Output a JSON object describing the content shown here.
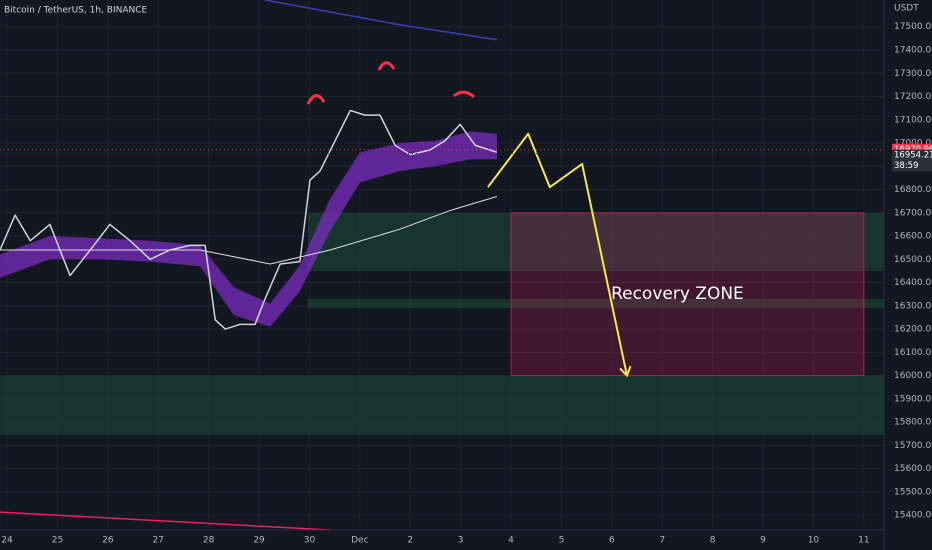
{
  "chart_data": {
    "type": "line",
    "title": "Bitcoin / TetherUS, 1h, BINANCE",
    "currency": "USDT",
    "xlim": [
      -0.14,
      17.4
    ],
    "ylim": [
      15250,
      17615
    ],
    "grid": true,
    "xticks": [
      {
        "value": 0,
        "label": "24"
      },
      {
        "value": 1,
        "label": "25"
      },
      {
        "value": 2,
        "label": "26"
      },
      {
        "value": 3,
        "label": "27"
      },
      {
        "value": 4,
        "label": "28"
      },
      {
        "value": 5,
        "label": "29"
      },
      {
        "value": 6,
        "label": "30"
      },
      {
        "value": 7,
        "label": "Dec"
      },
      {
        "value": 8,
        "label": "2"
      },
      {
        "value": 9,
        "label": "3"
      },
      {
        "value": 10,
        "label": "4"
      },
      {
        "value": 11,
        "label": "5"
      },
      {
        "value": 12,
        "label": "6"
      },
      {
        "value": 13,
        "label": "7"
      },
      {
        "value": 14,
        "label": "8"
      },
      {
        "value": 15,
        "label": "9"
      },
      {
        "value": 16,
        "label": "10"
      },
      {
        "value": 17,
        "label": "11"
      }
    ],
    "yticks": [
      {
        "value": 15400,
        "label": "15400.00"
      },
      {
        "value": 15500,
        "label": "15500.00"
      },
      {
        "value": 15600,
        "label": "15600.00"
      },
      {
        "value": 15700,
        "label": "15700.00"
      },
      {
        "value": 15800,
        "label": "15800.00"
      },
      {
        "value": 15900,
        "label": "15900.00"
      },
      {
        "value": 16000,
        "label": "16000.00"
      },
      {
        "value": 16100,
        "label": "16100.00"
      },
      {
        "value": 16200,
        "label": "16200.00"
      },
      {
        "value": 16300,
        "label": "16300.00"
      },
      {
        "value": 16400,
        "label": "16400.00"
      },
      {
        "value": 16500,
        "label": "16500.00"
      },
      {
        "value": 16600,
        "label": "16600.00"
      },
      {
        "value": 16700,
        "label": "16700.00"
      },
      {
        "value": 16800,
        "label": "16800.00"
      },
      {
        "value": 16900,
        "label": "16900.00"
      },
      {
        "value": 17000,
        "label": "17000.00"
      },
      {
        "value": 17100,
        "label": "17100.00"
      },
      {
        "value": 17200,
        "label": "17200.00"
      },
      {
        "value": 17300,
        "label": "17300.00"
      },
      {
        "value": 17400,
        "label": "17400.00"
      },
      {
        "value": 17500,
        "label": "17500.00"
      }
    ],
    "zones": [
      {
        "x": [
          5.97,
          17.4
        ],
        "y": [
          16450,
          16700
        ],
        "color": "#1e4d3a"
      },
      {
        "x": [
          5.97,
          17.4
        ],
        "y": [
          16290,
          16330
        ],
        "color": "#1e4d3a"
      },
      {
        "x": [
          -0.14,
          17.4
        ],
        "y": [
          15830,
          16000
        ],
        "color": "#1e4d3a"
      },
      {
        "x": [
          -0.14,
          17.4
        ],
        "y": [
          15745,
          15830
        ],
        "color": "#1e4d3a"
      },
      {
        "x": [
          10,
          17
        ],
        "y": [
          16000,
          16700
        ],
        "color": "#e91e63",
        "label": "Recovery ZONE"
      }
    ],
    "bands": [
      {
        "color": "#7b2cbf",
        "x": [
          -0.14,
          0.85,
          1.85,
          2.84,
          3.83,
          4.5,
          5.22,
          5.8,
          6.41,
          7.0,
          7.8,
          8.5,
          9.2,
          9.72
        ],
        "upper": [
          16520,
          16600,
          16590,
          16580,
          16560,
          16380,
          16310,
          16470,
          16760,
          16960,
          17000,
          17010,
          17050,
          17040
        ],
        "lower": [
          16420,
          16500,
          16500,
          16490,
          16470,
          16260,
          16210,
          16360,
          16620,
          16830,
          16880,
          16900,
          16930,
          16930
        ]
      }
    ],
    "series": [
      {
        "color": "#d1d4dc",
        "width": 1.5,
        "x": [
          -0.14,
          0.16,
          0.46,
          0.85,
          1.25,
          1.65,
          2.04,
          2.44,
          2.84,
          3.23,
          3.63,
          3.93,
          4.13,
          4.33,
          4.62,
          4.92,
          5.12,
          5.42,
          5.81,
          6.01,
          6.21,
          6.51,
          6.81,
          7.1,
          7.4,
          7.7,
          8.0,
          8.39,
          8.69,
          8.99,
          9.29,
          9.58,
          9.72
        ],
        "values": [
          16540,
          16690,
          16580,
          16650,
          16430,
          16540,
          16650,
          16580,
          16500,
          16540,
          16560,
          16560,
          16240,
          16200,
          16220,
          16220,
          16330,
          16480,
          16490,
          16840,
          16880,
          17010,
          17140,
          17120,
          17120,
          16990,
          16950,
          16970,
          17010,
          17080,
          16990,
          16970,
          16960
        ]
      },
      {
        "color": "#e0e0e0",
        "width": 1,
        "x": [
          -0.14,
          1.85,
          3.83,
          5.22,
          6.41,
          7.8,
          8.79,
          9.72
        ],
        "values": [
          16540,
          16540,
          16540,
          16480,
          16540,
          16630,
          16710,
          16770
        ]
      },
      {
        "color": "#3f3fb5",
        "width": 1.5,
        "x": [
          5.12,
          7.8,
          9.72
        ],
        "values": [
          17615,
          17508,
          17444
        ]
      },
      {
        "color": "#e91e63",
        "width": 1.5,
        "x": [
          -0.14,
          6.41
        ],
        "values": [
          15413,
          15336
        ]
      },
      {
        "color": "#f5ea48",
        "width": 2,
        "arrow": true,
        "x": [
          9.54,
          10.34,
          10.77,
          11.41,
          12.3
        ],
        "values": [
          16810,
          17040,
          16810,
          16910,
          16000
        ]
      }
    ],
    "price_tags": [
      {
        "value": 16970.96,
        "color": "#f23645"
      },
      {
        "value": 16954.21,
        "color": "#2a2e39",
        "countdown": "38:59"
      }
    ]
  }
}
